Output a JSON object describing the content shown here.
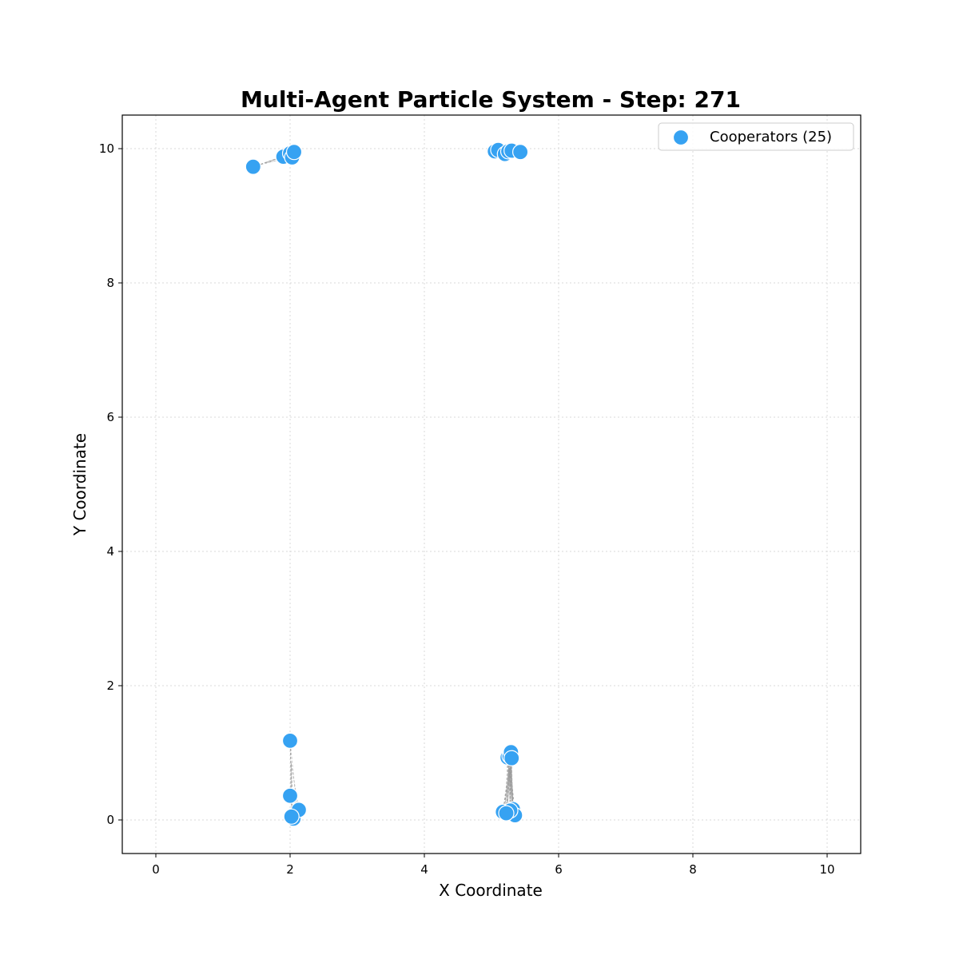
{
  "chart_data": {
    "type": "scatter",
    "title": "Multi-Agent Particle System - Step: 271",
    "xlabel": "X Coordinate",
    "ylabel": "Y Coordinate",
    "xlim": [
      -0.5,
      10.5
    ],
    "ylim": [
      -0.5,
      10.5
    ],
    "xticks": [
      "0",
      "2",
      "4",
      "6",
      "8",
      "10"
    ],
    "yticks": [
      "0",
      "2",
      "4",
      "6",
      "8",
      "10"
    ],
    "grid": true,
    "legend_position": "top-right",
    "series": [
      {
        "name": "Cooperators (25)",
        "color": "#36a2f2",
        "points": [
          {
            "x": 1.45,
            "y": 9.73
          },
          {
            "x": 1.9,
            "y": 9.88
          },
          {
            "x": 2.0,
            "y": 9.93
          },
          {
            "x": 2.03,
            "y": 9.87
          },
          {
            "x": 2.06,
            "y": 9.95
          },
          {
            "x": 5.05,
            "y": 9.96
          },
          {
            "x": 5.1,
            "y": 9.98
          },
          {
            "x": 5.2,
            "y": 9.92
          },
          {
            "x": 5.25,
            "y": 9.96
          },
          {
            "x": 5.3,
            "y": 9.97
          },
          {
            "x": 5.43,
            "y": 9.95
          },
          {
            "x": 2.0,
            "y": 1.18
          },
          {
            "x": 2.0,
            "y": 0.36
          },
          {
            "x": 2.05,
            "y": 0.02
          },
          {
            "x": 2.13,
            "y": 0.15
          },
          {
            "x": 2.02,
            "y": 0.05
          },
          {
            "x": 5.17,
            "y": 0.12
          },
          {
            "x": 5.24,
            "y": 0.93
          },
          {
            "x": 5.27,
            "y": 0.95
          },
          {
            "x": 5.29,
            "y": 1.01
          },
          {
            "x": 5.3,
            "y": 0.92
          },
          {
            "x": 5.32,
            "y": 0.16
          },
          {
            "x": 5.35,
            "y": 0.07
          },
          {
            "x": 5.28,
            "y": 0.14
          },
          {
            "x": 5.22,
            "y": 0.1
          }
        ]
      }
    ]
  }
}
